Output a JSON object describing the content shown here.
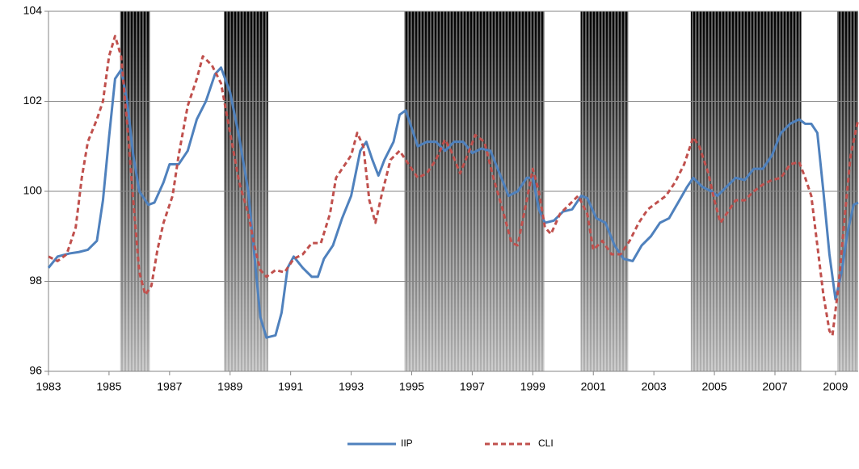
{
  "chart_data": {
    "type": "line",
    "xlim": [
      1983,
      2009.75
    ],
    "xticks": [
      1983,
      1985,
      1987,
      1989,
      1991,
      1993,
      1995,
      1997,
      1999,
      2001,
      2003,
      2005,
      2007,
      2009
    ],
    "ylim": [
      96,
      104
    ],
    "yticks": [
      96,
      98,
      100,
      102,
      104
    ],
    "grid": true,
    "legend": "bottom",
    "shaded_periods": [
      [
        1985.37,
        1986.35
      ],
      [
        1988.8,
        1990.26
      ],
      [
        1994.76,
        1999.38
      ],
      [
        2000.58,
        2002.15
      ],
      [
        2004.22,
        2007.87
      ],
      [
        2009.06,
        2009.75
      ]
    ],
    "shade_color": "#8eaadc",
    "series": [
      {
        "name": "IIP",
        "color": "#4f81bd",
        "style": "solid",
        "x": [
          1983.0,
          1983.3,
          1983.7,
          1984.0,
          1984.3,
          1984.6,
          1984.8,
          1985.0,
          1985.2,
          1985.4,
          1985.6,
          1985.8,
          1986.0,
          1986.3,
          1986.5,
          1986.8,
          1987.0,
          1987.3,
          1987.6,
          1987.9,
          1988.2,
          1988.5,
          1988.7,
          1989.0,
          1989.3,
          1989.6,
          1989.8,
          1990.0,
          1990.2,
          1990.5,
          1990.7,
          1990.9,
          1991.1,
          1991.4,
          1991.7,
          1991.9,
          1992.1,
          1992.4,
          1992.7,
          1993.0,
          1993.3,
          1993.5,
          1993.7,
          1993.9,
          1994.1,
          1994.4,
          1994.6,
          1994.8,
          1995.0,
          1995.2,
          1995.5,
          1995.8,
          1996.1,
          1996.4,
          1996.7,
          1997.0,
          1997.3,
          1997.6,
          1997.9,
          1998.2,
          1998.5,
          1998.8,
          1999.0,
          1999.2,
          1999.4,
          1999.7,
          2000.0,
          2000.3,
          2000.6,
          2000.8,
          2001.1,
          2001.4,
          2001.7,
          2002.0,
          2002.3,
          2002.6,
          2002.9,
          2003.2,
          2003.5,
          2003.8,
          2004.1,
          2004.3,
          2004.6,
          2004.9,
          2005.1,
          2005.4,
          2005.7,
          2006.0,
          2006.3,
          2006.6,
          2006.9,
          2007.2,
          2007.5,
          2007.8,
          2008.0,
          2008.2,
          2008.4,
          2008.6,
          2008.8,
          2009.0,
          2009.2,
          2009.4,
          2009.6,
          2009.75
        ],
        "values": [
          98.3,
          98.55,
          98.62,
          98.65,
          98.7,
          98.9,
          99.8,
          101.2,
          102.5,
          102.7,
          102.0,
          100.8,
          100.0,
          99.7,
          99.75,
          100.2,
          100.6,
          100.6,
          100.9,
          101.6,
          102.0,
          102.6,
          102.75,
          102.2,
          101.2,
          100.0,
          98.6,
          97.2,
          96.75,
          96.8,
          97.3,
          98.3,
          98.55,
          98.3,
          98.1,
          98.1,
          98.5,
          98.8,
          99.4,
          99.9,
          100.9,
          101.1,
          100.7,
          100.35,
          100.7,
          101.1,
          101.7,
          101.8,
          101.4,
          101.0,
          101.1,
          101.1,
          100.9,
          101.1,
          101.1,
          100.85,
          100.95,
          100.9,
          100.4,
          99.9,
          100.0,
          100.3,
          100.3,
          99.6,
          99.3,
          99.35,
          99.55,
          99.6,
          99.9,
          99.85,
          99.4,
          99.3,
          98.8,
          98.5,
          98.45,
          98.8,
          99.0,
          99.3,
          99.4,
          99.75,
          100.1,
          100.3,
          100.1,
          100.0,
          99.9,
          100.1,
          100.3,
          100.25,
          100.5,
          100.5,
          100.8,
          101.3,
          101.5,
          101.6,
          101.5,
          101.5,
          101.3,
          100.0,
          98.6,
          97.6,
          98.2,
          99.1,
          99.7,
          99.75
        ]
      },
      {
        "name": "CLI",
        "color": "#c0504d",
        "style": "dashed",
        "x": [
          1983.0,
          1983.3,
          1983.6,
          1983.9,
          1984.1,
          1984.3,
          1984.6,
          1984.8,
          1985.0,
          1985.2,
          1985.4,
          1985.6,
          1985.8,
          1986.0,
          1986.2,
          1986.4,
          1986.6,
          1986.8,
          1987.1,
          1987.3,
          1987.6,
          1987.9,
          1988.1,
          1988.4,
          1988.7,
          1989.0,
          1989.3,
          1989.6,
          1989.8,
          1990.0,
          1990.2,
          1990.5,
          1990.8,
          1991.1,
          1991.4,
          1991.7,
          1992.0,
          1992.3,
          1992.5,
          1992.8,
          1993.0,
          1993.2,
          1993.4,
          1993.6,
          1993.8,
          1994.0,
          1994.3,
          1994.6,
          1994.9,
          1995.2,
          1995.5,
          1995.8,
          1996.1,
          1996.3,
          1996.6,
          1996.9,
          1997.1,
          1997.4,
          1997.7,
          1998.0,
          1998.3,
          1998.5,
          1998.8,
          1999.0,
          1999.2,
          1999.4,
          1999.6,
          1999.9,
          2000.2,
          2000.5,
          2000.8,
          2001.0,
          2001.3,
          2001.6,
          2001.9,
          2002.2,
          2002.5,
          2002.8,
          2003.1,
          2003.4,
          2003.7,
          2004.0,
          2004.3,
          2004.5,
          2004.8,
          2005.0,
          2005.2,
          2005.4,
          2005.7,
          2006.0,
          2006.3,
          2006.6,
          2006.9,
          2007.2,
          2007.5,
          2007.8,
          2008.0,
          2008.2,
          2008.4,
          2008.6,
          2008.8,
          2008.9,
          2009.1,
          2009.3,
          2009.5,
          2009.75
        ],
        "values": [
          98.55,
          98.45,
          98.6,
          99.2,
          100.3,
          101.1,
          101.6,
          102.0,
          103.0,
          103.45,
          103.0,
          101.5,
          99.8,
          98.2,
          97.7,
          97.9,
          98.7,
          99.3,
          99.9,
          100.8,
          101.9,
          102.5,
          103.0,
          102.8,
          102.4,
          101.3,
          100.2,
          99.5,
          98.8,
          98.25,
          98.1,
          98.25,
          98.2,
          98.5,
          98.6,
          98.85,
          98.85,
          99.5,
          100.3,
          100.6,
          100.8,
          101.3,
          101.0,
          99.8,
          99.3,
          99.9,
          100.7,
          100.9,
          100.6,
          100.3,
          100.4,
          100.7,
          101.15,
          100.9,
          100.4,
          100.9,
          101.25,
          101.1,
          100.3,
          99.6,
          98.85,
          98.8,
          99.8,
          100.5,
          100.0,
          99.2,
          99.05,
          99.5,
          99.7,
          99.9,
          99.5,
          98.7,
          98.9,
          98.6,
          98.6,
          98.9,
          99.3,
          99.6,
          99.75,
          99.9,
          100.2,
          100.6,
          101.2,
          101.0,
          100.4,
          99.8,
          99.3,
          99.5,
          99.8,
          99.8,
          100.0,
          100.15,
          100.25,
          100.3,
          100.6,
          100.65,
          100.3,
          99.9,
          98.8,
          97.7,
          96.9,
          96.8,
          97.9,
          99.4,
          100.8,
          101.6
        ]
      }
    ]
  }
}
